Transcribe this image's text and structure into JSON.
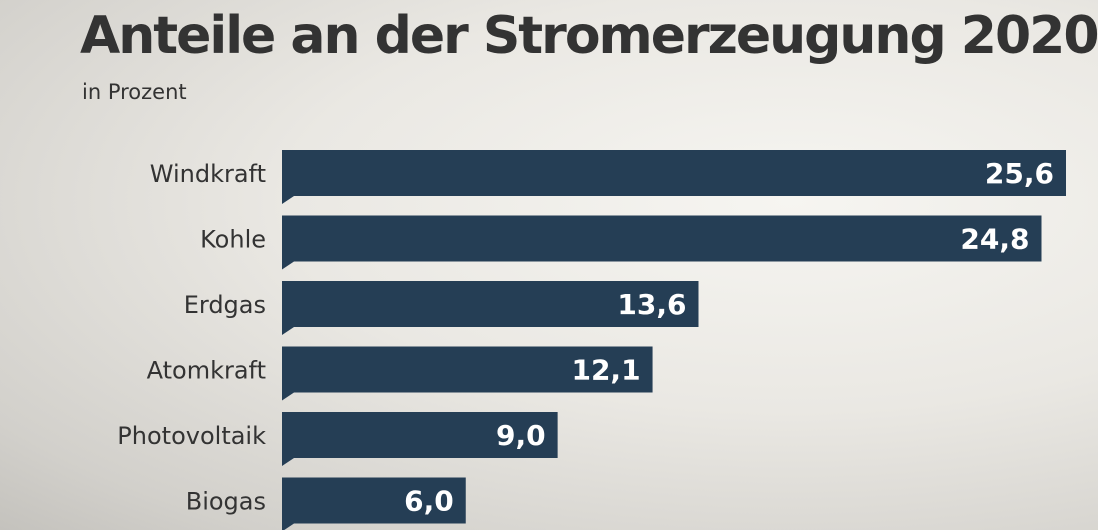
{
  "colors": {
    "bar": "#253e55",
    "text": "#333333",
    "value_text": "#ffffff"
  },
  "chart_data": {
    "type": "bar",
    "orientation": "horizontal",
    "title": "Anteile an der Stromerzeugung 2020",
    "subtitle": "in Prozent",
    "categories": [
      "Windkraft",
      "Kohle",
      "Erdgas",
      "Atomkraft",
      "Photovoltaik",
      "Biogas"
    ],
    "values": [
      25.6,
      24.8,
      13.6,
      12.1,
      9.0,
      6.0
    ],
    "value_labels": [
      "25,6",
      "24,8",
      "13,6",
      "12,1",
      "9,0",
      "6,0"
    ],
    "xlim": [
      0,
      25.6
    ],
    "grid": false,
    "legend": "none"
  }
}
